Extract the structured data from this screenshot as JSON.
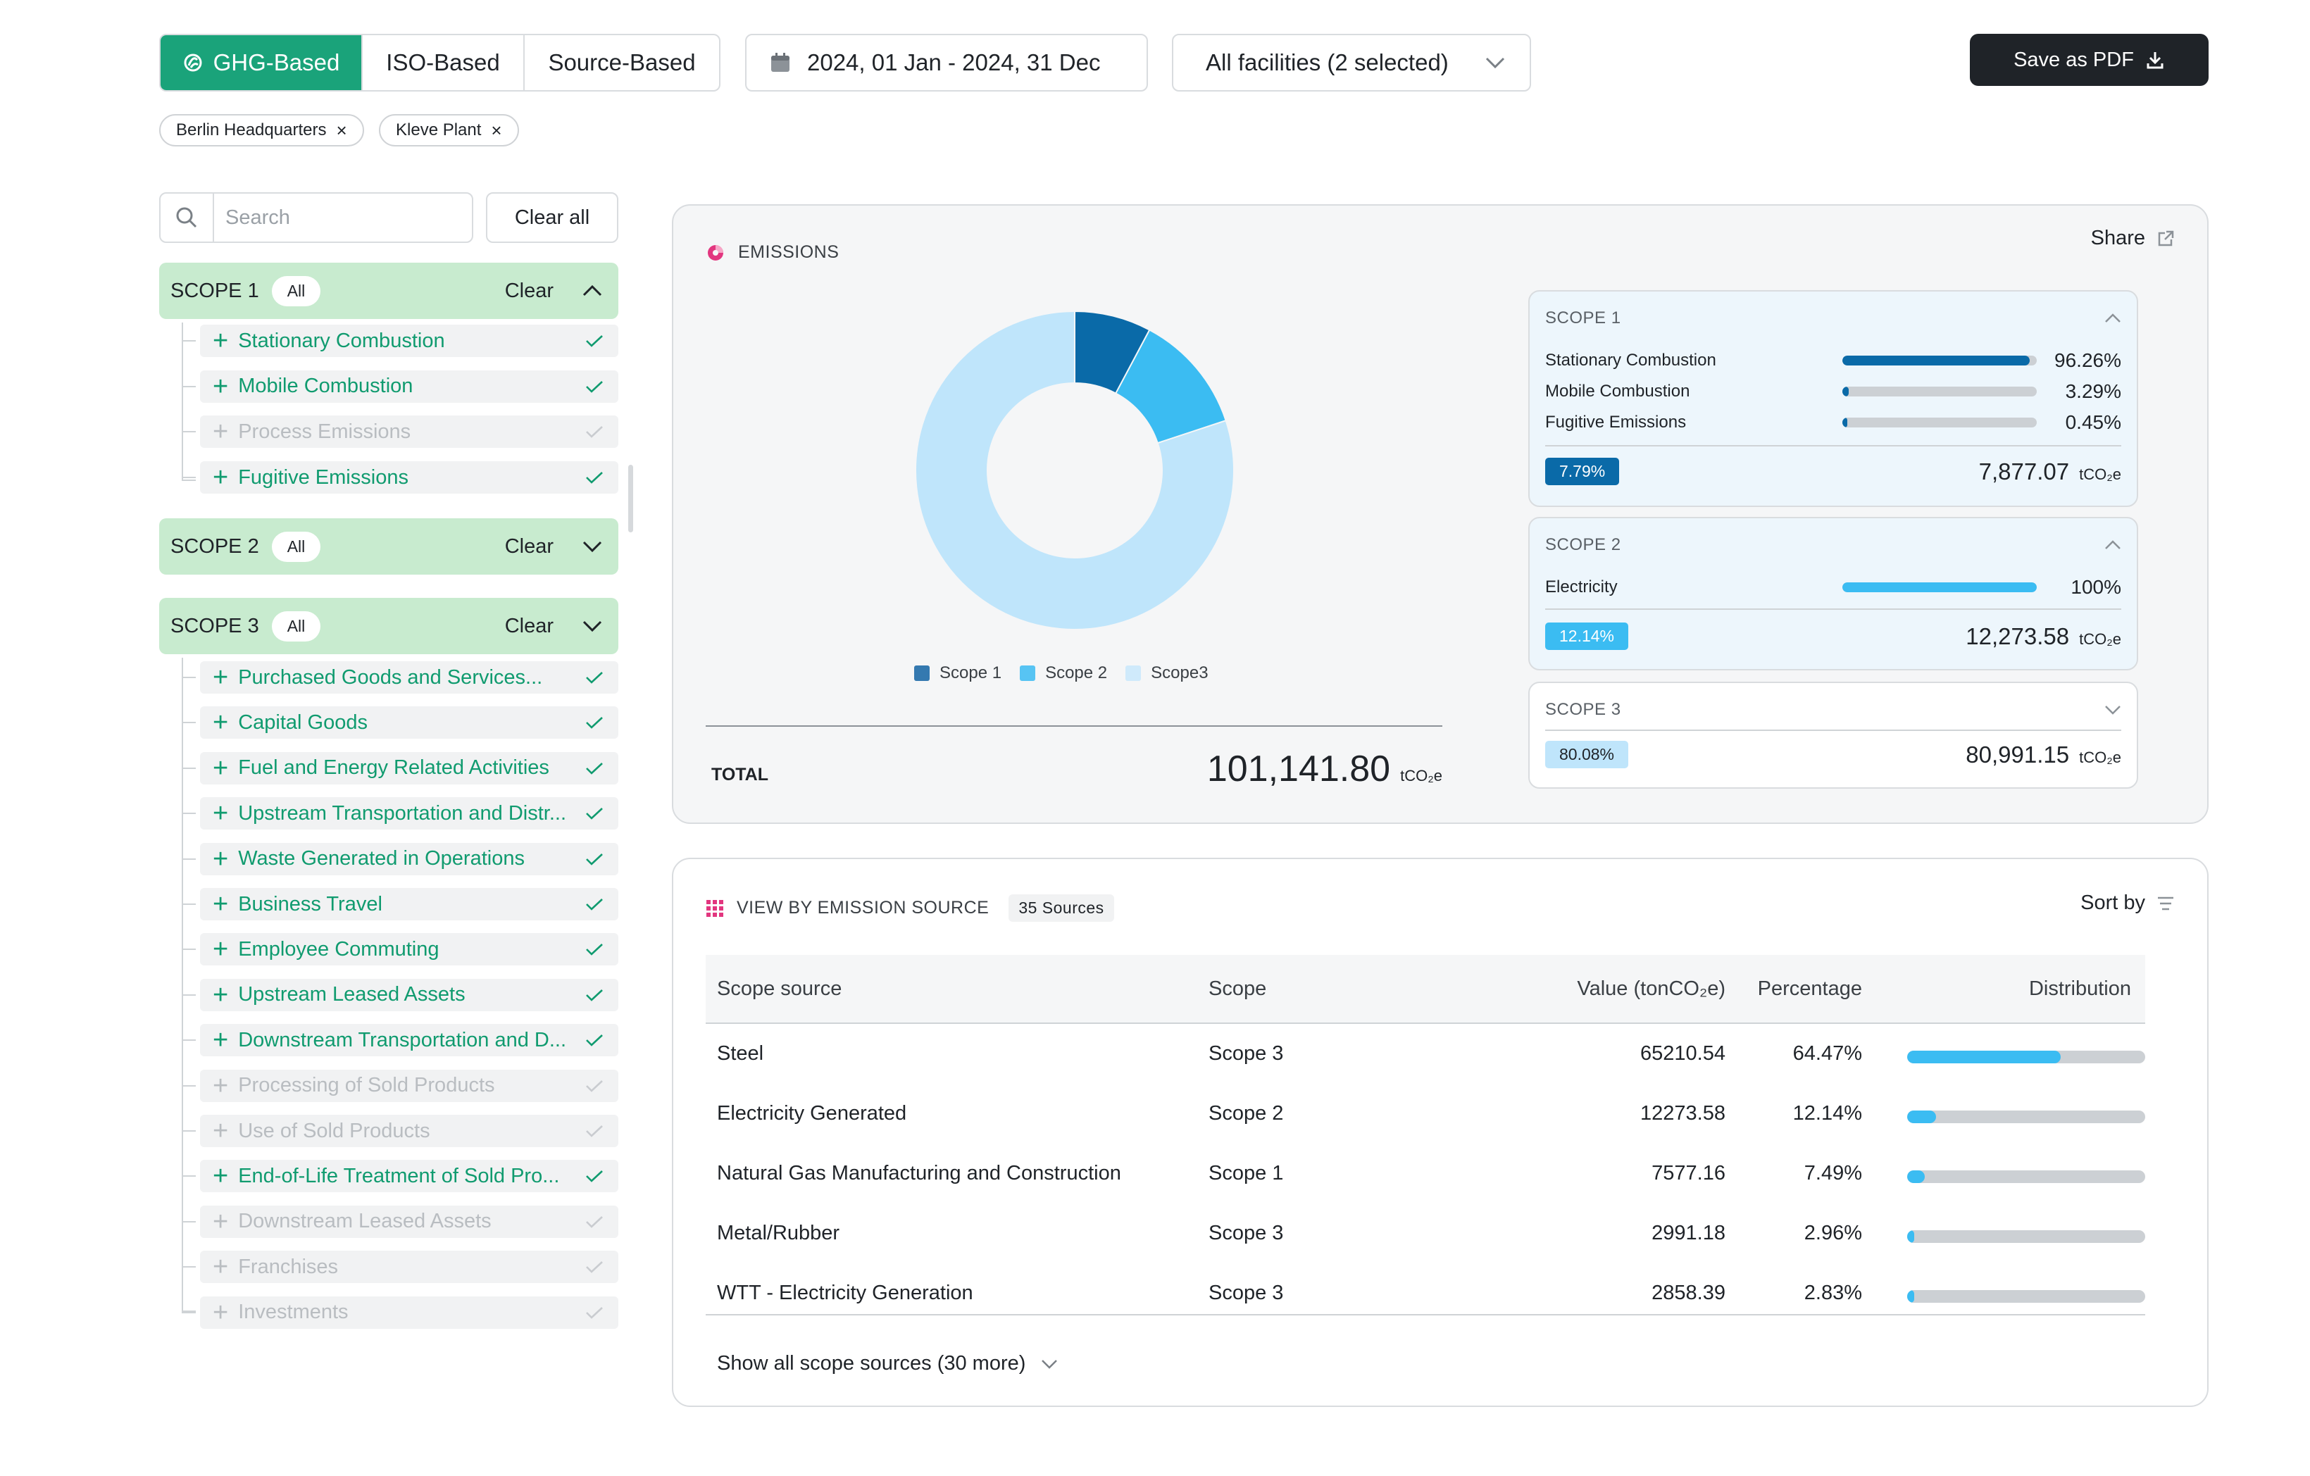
{
  "toolbar": {
    "tabs": [
      {
        "label": "GHG-Based",
        "active": true
      },
      {
        "label": "ISO-Based",
        "active": false
      },
      {
        "label": "Source-Based",
        "active": false
      }
    ],
    "date_range": "2024, 01 Jan - 2024, 31 Dec",
    "facilities": "All facilities (2 selected)",
    "save_label": "Save as PDF"
  },
  "chips": [
    "Berlin Headquarters",
    "Kleve Plant"
  ],
  "filters": {
    "search_placeholder": "Search",
    "clear_all": "Clear all",
    "scope1": {
      "label": "SCOPE 1",
      "all": "All",
      "clear": "Clear",
      "items": [
        {
          "label": "Stationary Combustion",
          "enabled": true
        },
        {
          "label": "Mobile Combustion",
          "enabled": true
        },
        {
          "label": "Process Emissions",
          "enabled": false
        },
        {
          "label": "Fugitive Emissions",
          "enabled": true
        }
      ]
    },
    "scope2": {
      "label": "SCOPE 2",
      "all": "All",
      "clear": "Clear"
    },
    "scope3": {
      "label": "SCOPE 3",
      "all": "All",
      "clear": "Clear",
      "items": [
        {
          "label": "Purchased Goods and Services...",
          "enabled": true
        },
        {
          "label": "Capital Goods",
          "enabled": true
        },
        {
          "label": "Fuel and Energy Related Activities",
          "enabled": true
        },
        {
          "label": "Upstream Transportation and Distr...",
          "enabled": true
        },
        {
          "label": "Waste Generated in Operations",
          "enabled": true
        },
        {
          "label": "Business Travel",
          "enabled": true
        },
        {
          "label": "Employee Commuting",
          "enabled": true
        },
        {
          "label": "Upstream Leased Assets",
          "enabled": true
        },
        {
          "label": "Downstream Transportation and D...",
          "enabled": true
        },
        {
          "label": "Processing of Sold Products",
          "enabled": false
        },
        {
          "label": "Use of Sold Products",
          "enabled": false
        },
        {
          "label": "End-of-Life Treatment of Sold Pro...",
          "enabled": true
        },
        {
          "label": "Downstream Leased Assets",
          "enabled": false
        },
        {
          "label": "Franchises",
          "enabled": false
        },
        {
          "label": "Investments",
          "enabled": false
        }
      ]
    }
  },
  "emissions": {
    "title": "EMISSIONS",
    "share": "Share",
    "total_label": "TOTAL",
    "total_value": "101,141.80",
    "unit": "tCO₂e",
    "colors": {
      "scope1": "#0a6aa8",
      "scope2": "#3bbcf2",
      "scope3": "#bfe5fb"
    },
    "chart_data": {
      "type": "pie",
      "categories": [
        "Scope 1",
        "Scope 2",
        "Scope3"
      ],
      "values": [
        7.79,
        12.14,
        80.08
      ]
    },
    "scope_cards": [
      {
        "title": "SCOPE 1",
        "rows": [
          {
            "label": "Stationary Combustion",
            "pct": "96.26%",
            "value": 96.26
          },
          {
            "label": "Mobile Combustion",
            "pct": "3.29%",
            "value": 3.29
          },
          {
            "label": "Fugitive Emissions",
            "pct": "0.45%",
            "value": 0.45
          }
        ],
        "share": "7.79%",
        "total": "7,877.07"
      },
      {
        "title": "SCOPE 2",
        "rows": [
          {
            "label": "Electricity",
            "pct": "100%",
            "value": 100
          }
        ],
        "share": "12.14%",
        "total": "12,273.58"
      },
      {
        "title": "SCOPE 3",
        "share": "80.08%",
        "total": "80,991.15"
      }
    ]
  },
  "sources": {
    "title": "VIEW BY EMISSION SOURCE",
    "count": "35 Sources",
    "sort_label": "Sort by",
    "columns": [
      "Scope source",
      "Scope",
      "Value (tonCO₂e)",
      "Percentage",
      "Distribution"
    ],
    "rows": [
      {
        "source": "Steel",
        "scope": "Scope 3",
        "value": "65210.54",
        "pct": "64.47%",
        "dist": 64.47
      },
      {
        "source": "Electricity Generated",
        "scope": "Scope 2",
        "value": "12273.58",
        "pct": "12.14%",
        "dist": 12.14
      },
      {
        "source": "Natural Gas Manufacturing and Construction",
        "scope": "Scope 1",
        "value": "7577.16",
        "pct": "7.49%",
        "dist": 7.49
      },
      {
        "source": "Metal/Rubber",
        "scope": "Scope 3",
        "value": "2991.18",
        "pct": "2.96%",
        "dist": 2.96
      },
      {
        "source": "WTT - Electricity Generation",
        "scope": "Scope 3",
        "value": "2858.39",
        "pct": "2.83%",
        "dist": 2.83
      }
    ],
    "show_more": "Show all scope sources (30 more)"
  }
}
